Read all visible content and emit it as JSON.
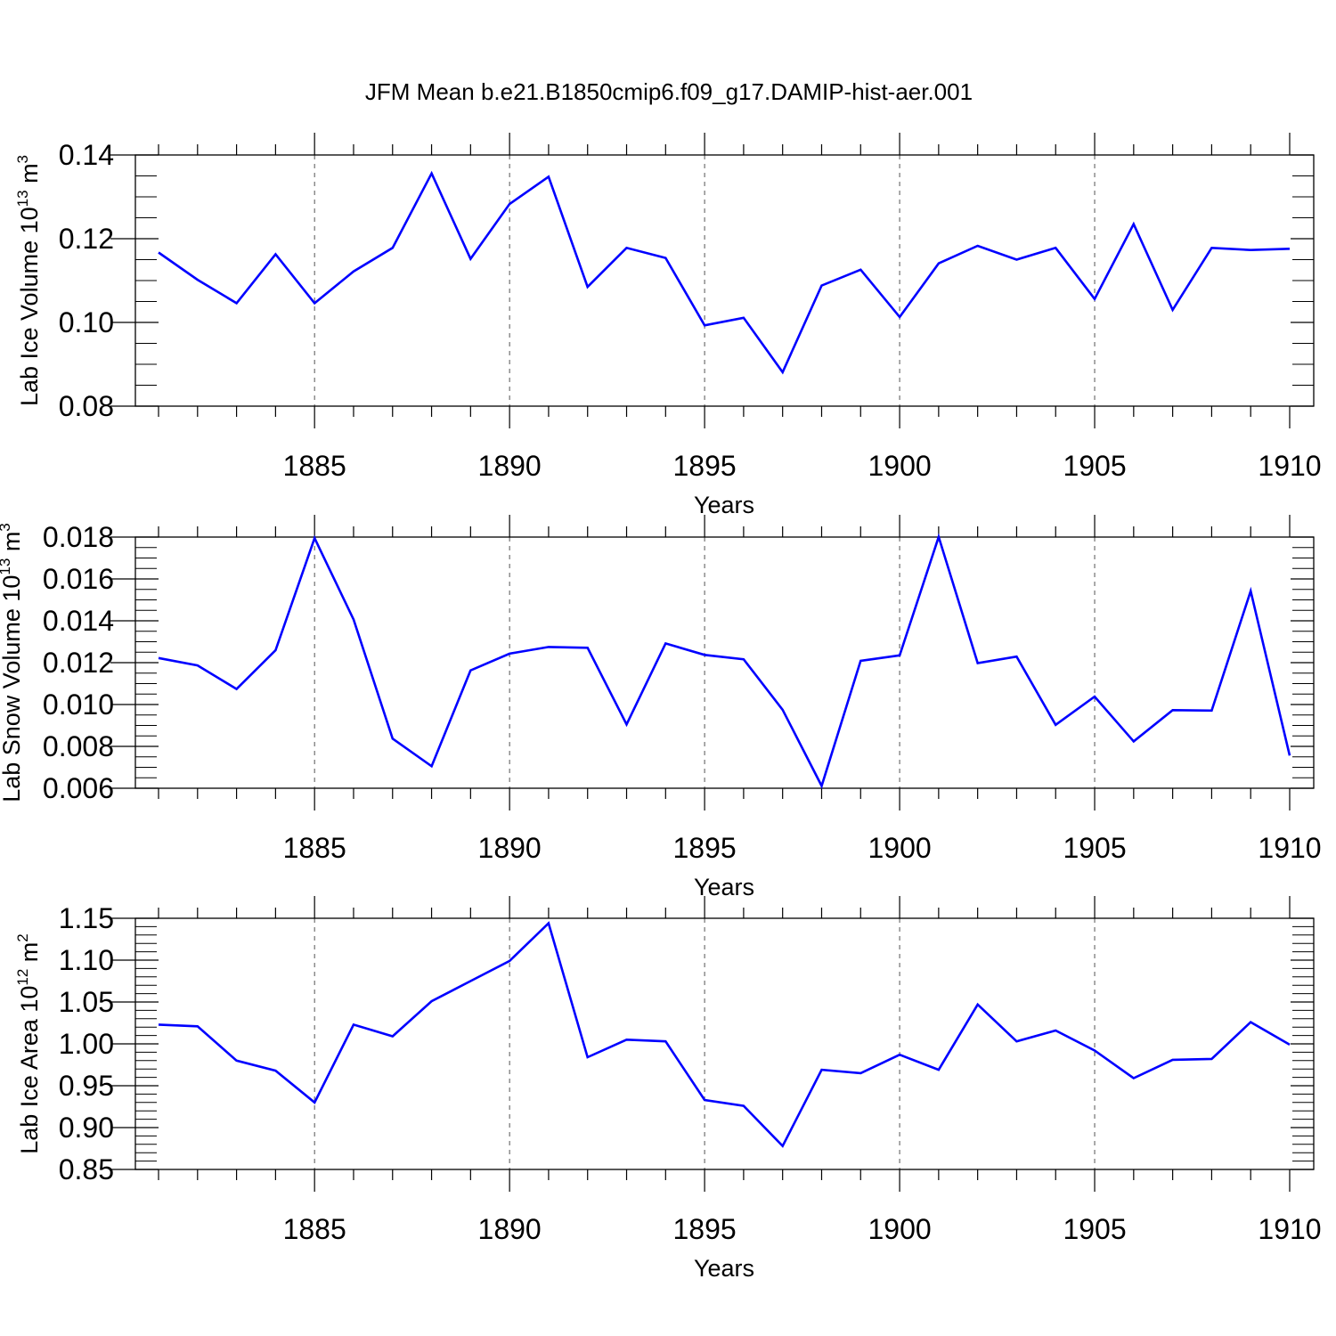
{
  "title": "JFM Mean b.e21.B1850cmip6.f09_g17.DAMIP-hist-aer.001",
  "colors": {
    "series": "#0000ff",
    "axis": "#000000",
    "grid": "#555555",
    "background": "#ffffff"
  },
  "chart_data": [
    {
      "type": "line",
      "ylabel": "Lab Ice Volume",
      "yunit_base": "10",
      "yunit_exp": "13",
      "yunit_unit": "m",
      "yunit_unit_exp": "3",
      "xlabel": "Years",
      "xlim": [
        1881,
        1910
      ],
      "ylim": [
        0.08,
        0.14
      ],
      "x_ticks": [
        1885,
        1890,
        1895,
        1900,
        1905,
        1910
      ],
      "y_ticks": [
        0.08,
        0.1,
        0.12,
        0.14
      ],
      "x_tick_labels": [
        "1885",
        "1890",
        "1895",
        "1900",
        "1905",
        "1910"
      ],
      "y_tick_labels": [
        "0.08",
        "0.10",
        "0.12",
        "0.14"
      ],
      "y_minor_step": 0.005,
      "x": [
        1881,
        1882,
        1883,
        1884,
        1885,
        1886,
        1887,
        1888,
        1889,
        1890,
        1891,
        1892,
        1893,
        1894,
        1895,
        1896,
        1897,
        1898,
        1899,
        1900,
        1901,
        1902,
        1903,
        1904,
        1905,
        1906,
        1907,
        1908,
        1909,
        1910
      ],
      "values": [
        0.1167,
        0.1102,
        0.1046,
        0.1163,
        0.1046,
        0.1122,
        0.1178,
        0.1356,
        0.1152,
        0.1283,
        0.1348,
        0.1085,
        0.1178,
        0.1154,
        0.0993,
        0.1011,
        0.0881,
        0.1088,
        0.1126,
        0.1013,
        0.1141,
        0.1183,
        0.115,
        0.1178,
        0.1056,
        0.1235,
        0.103,
        0.1178,
        0.1173,
        0.1176
      ]
    },
    {
      "type": "line",
      "ylabel": "Lab Snow Volume",
      "yunit_base": "10",
      "yunit_exp": "13",
      "yunit_unit": "m",
      "yunit_unit_exp": "3",
      "xlabel": "Years",
      "xlim": [
        1881,
        1910
      ],
      "ylim": [
        0.006,
        0.018
      ],
      "x_ticks": [
        1885,
        1890,
        1895,
        1900,
        1905,
        1910
      ],
      "y_ticks": [
        0.006,
        0.008,
        0.01,
        0.012,
        0.014,
        0.016,
        0.018
      ],
      "x_tick_labels": [
        "1885",
        "1890",
        "1895",
        "1900",
        "1905",
        "1910"
      ],
      "y_tick_labels": [
        "0.006",
        "0.008",
        "0.010",
        "0.012",
        "0.014",
        "0.016",
        "0.018"
      ],
      "y_minor_step": 0.0005,
      "x": [
        1881,
        1882,
        1883,
        1884,
        1885,
        1886,
        1887,
        1888,
        1889,
        1890,
        1891,
        1892,
        1893,
        1894,
        1895,
        1896,
        1897,
        1898,
        1899,
        1900,
        1901,
        1902,
        1903,
        1904,
        1905,
        1906,
        1907,
        1908,
        1909,
        1910
      ],
      "values": [
        0.01222,
        0.01187,
        0.01074,
        0.01259,
        0.01795,
        0.01406,
        0.00837,
        0.00705,
        0.01163,
        0.01243,
        0.01275,
        0.01271,
        0.00905,
        0.01292,
        0.01237,
        0.01216,
        0.00975,
        0.00611,
        0.01209,
        0.01235,
        0.01801,
        0.01198,
        0.01229,
        0.00903,
        0.01038,
        0.00824,
        0.00973,
        0.00971,
        0.01542,
        0.00756
      ]
    },
    {
      "type": "line",
      "ylabel": "Lab Ice Area",
      "yunit_base": "10",
      "yunit_exp": "12",
      "yunit_unit": "m",
      "yunit_unit_exp": "2",
      "xlabel": "Years",
      "xlim": [
        1881,
        1910
      ],
      "ylim": [
        0.85,
        1.15
      ],
      "x_ticks": [
        1885,
        1890,
        1895,
        1900,
        1905,
        1910
      ],
      "y_ticks": [
        0.85,
        0.9,
        0.95,
        1.0,
        1.05,
        1.1,
        1.15
      ],
      "x_tick_labels": [
        "1885",
        "1890",
        "1895",
        "1900",
        "1905",
        "1910"
      ],
      "y_tick_labels": [
        "0.85",
        "0.90",
        "0.95",
        "1.00",
        "1.05",
        "1.10",
        "1.15"
      ],
      "y_minor_step": 0.01,
      "x": [
        1881,
        1882,
        1883,
        1884,
        1885,
        1886,
        1887,
        1888,
        1889,
        1890,
        1891,
        1892,
        1893,
        1894,
        1895,
        1896,
        1897,
        1898,
        1899,
        1900,
        1901,
        1902,
        1903,
        1904,
        1905,
        1906,
        1907,
        1908,
        1909,
        1910
      ],
      "values": [
        1.023,
        1.021,
        0.98,
        0.968,
        0.93,
        1.023,
        1.009,
        1.051,
        1.075,
        1.099,
        1.144,
        0.984,
        1.005,
        1.003,
        0.933,
        0.926,
        0.878,
        0.969,
        0.965,
        0.987,
        0.969,
        1.047,
        1.003,
        1.016,
        0.992,
        0.959,
        0.981,
        0.982,
        1.026,
        0.999
      ]
    }
  ]
}
